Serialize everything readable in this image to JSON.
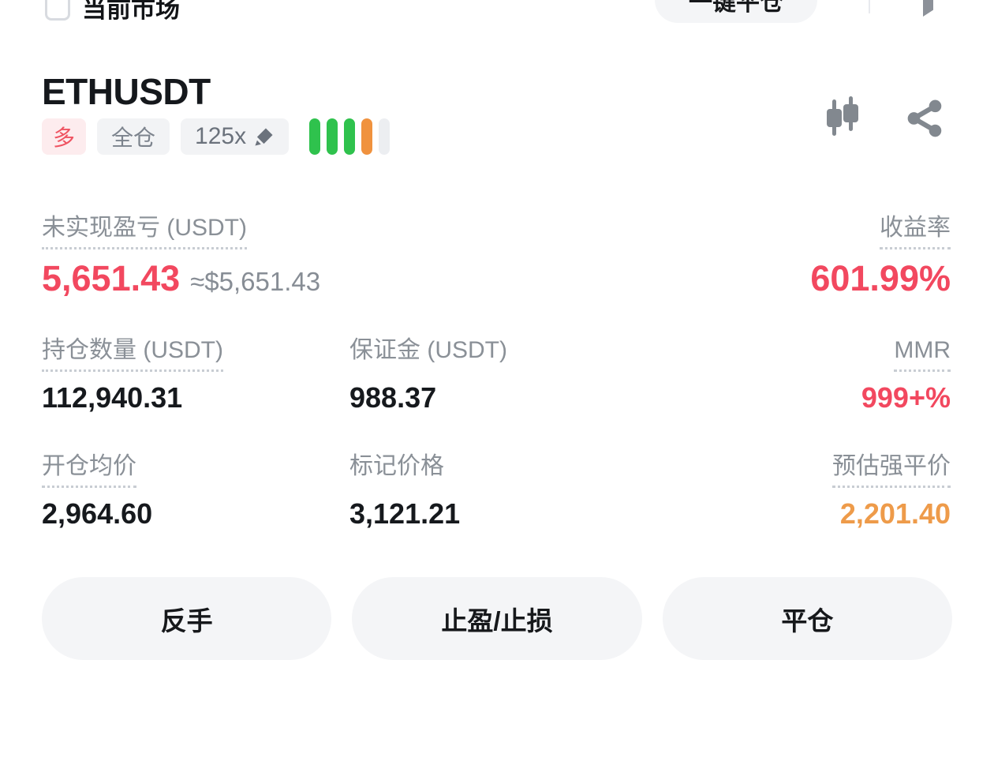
{
  "colors": {
    "red": "#F2485F",
    "orange": "#EE9B4A",
    "green-bar": "#2FC24D",
    "orange-bar": "#F0923E",
    "inactive-bar": "#ECEEF1",
    "label-gray": "#8A9097",
    "value-dark": "#16191D",
    "icon-gray": "#82888F",
    "badge-red-bg": "#FDECEE",
    "badge-gray-bg": "#F2F3F5",
    "button-bg": "#F4F5F7"
  },
  "header": {
    "market_filter_label": "当前市场",
    "close_all_label": "一键平仓"
  },
  "position": {
    "symbol": "ETHUSDT",
    "side_badge": "多",
    "margin_mode": "全仓",
    "leverage": "125x",
    "risk_bars": [
      "green",
      "green",
      "green",
      "orange",
      "inactive"
    ]
  },
  "stats": {
    "pnl_label": "未实现盈亏 (USDT)",
    "pnl_value": "5,651.43",
    "pnl_approx": "≈$5,651.43",
    "roi_label": "收益率",
    "roi_value": "601.99%",
    "size_label": "持仓数量 (USDT)",
    "size_value": "112,940.31",
    "margin_label": "保证金 (USDT)",
    "margin_value": "988.37",
    "mmr_label": "MMR",
    "mmr_value": "999+%",
    "entry_label": "开仓均价",
    "entry_value": "2,964.60",
    "mark_label": "标记价格",
    "mark_value": "3,121.21",
    "liq_label": "预估强平价",
    "liq_value": "2,201.40"
  },
  "actions": {
    "reverse": "反手",
    "tpsl": "止盈/止损",
    "close": "平仓"
  }
}
